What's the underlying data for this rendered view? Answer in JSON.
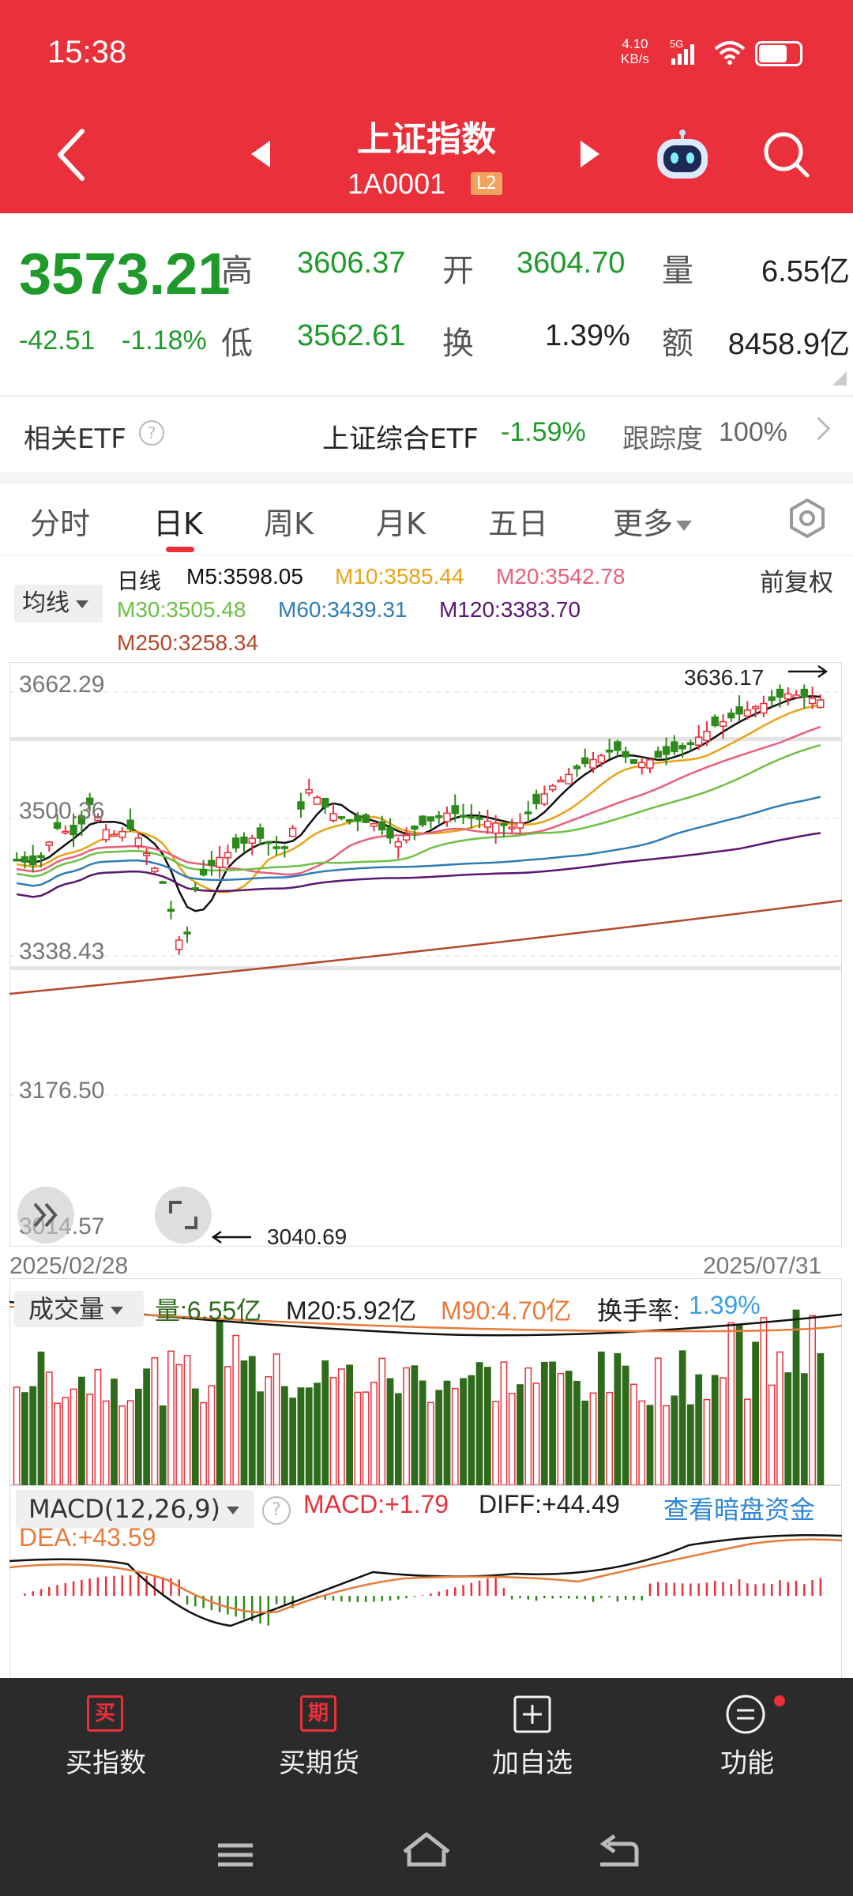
{
  "status_bar": {
    "time": "15:38",
    "net_speed_value": "4.10",
    "net_speed_unit": "KB/s",
    "network": "5G",
    "battery_level": 0.7
  },
  "header": {
    "title": "上证指数",
    "code": "1A0001",
    "level_badge": "L2",
    "icons": [
      "back-icon",
      "prev-icon",
      "next-icon",
      "robot-assistant-icon",
      "search-icon"
    ]
  },
  "quote": {
    "price": "3573.21",
    "change": "-42.51",
    "change_pct": "-1.18%",
    "high_label": "高",
    "high": "3606.37",
    "open_label": "开",
    "open": "3604.70",
    "volume_label": "量",
    "volume": "6.55亿",
    "low_label": "低",
    "low": "3562.61",
    "turnover_label": "换",
    "turnover": "1.39%",
    "amount_label": "额",
    "amount": "8458.9亿"
  },
  "etf": {
    "title": "相关ETF",
    "help": "?",
    "name": "上证综合ETF",
    "change": "-1.59%",
    "tracking_label": "跟踪度",
    "tracking": "100%"
  },
  "tabs": [
    {
      "label": "分时",
      "active": false
    },
    {
      "label": "日K",
      "active": true
    },
    {
      "label": "周K",
      "active": false
    },
    {
      "label": "月K",
      "active": false
    },
    {
      "label": "五日",
      "active": false
    },
    {
      "label": "更多",
      "active": false
    }
  ],
  "ma_legend": {
    "dropdown": "均线",
    "period": "日线",
    "adjust": "前复权",
    "items": [
      {
        "text": "M5:3598.05",
        "color": "#111111"
      },
      {
        "text": "M10:3585.44",
        "color": "#e8a317"
      },
      {
        "text": "M20:3542.78",
        "color": "#e8607b"
      },
      {
        "text": "M30:3505.48",
        "color": "#6ec046"
      },
      {
        "text": "M60:3439.31",
        "color": "#2e7db5"
      },
      {
        "text": "M120:3383.70",
        "color": "#5a1670"
      },
      {
        "text": "M250:3258.34",
        "color": "#b5482a"
      }
    ]
  },
  "kline": {
    "y_labels": [
      "3662.29",
      "3500.36",
      "3338.43",
      "3176.50",
      "3014.57"
    ],
    "high_marker": "3636.17",
    "low_marker": "3040.69",
    "date_start": "2025/02/28",
    "date_end": "2025/07/31"
  },
  "volume": {
    "dropdown": "成交量",
    "vol_label": "量:6.55亿",
    "m20_label": "M20:5.92亿",
    "m90_label": "M90:4.70亿",
    "turnover_label": "换手率:",
    "turnover_value": "1.39%"
  },
  "macd": {
    "dropdown": "MACD(12,26,9)",
    "help": "?",
    "macd_label": "MACD:+1.79",
    "diff_label": "DIFF:+44.49",
    "dea_label": "DEA:+43.59",
    "link": "查看暗盘资金"
  },
  "bottom_nav": [
    {
      "label": "买指数",
      "icon": "买"
    },
    {
      "label": "买期货",
      "icon": "期"
    },
    {
      "label": "加自选",
      "icon": "plus-box-icon"
    },
    {
      "label": "功能",
      "icon": "menu-circle-icon"
    }
  ],
  "colors": {
    "brand_red": "#e9303b",
    "down_green": "#1f9a2a",
    "up_red": "#e9303b"
  }
}
